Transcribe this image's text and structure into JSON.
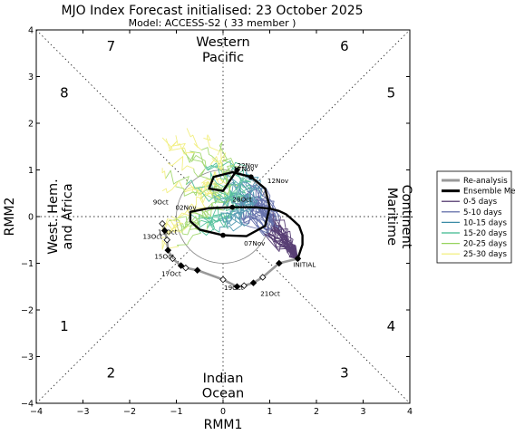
{
  "title": "MJO Index Forecast initialised:  23  October 2025",
  "subtitle": "Model: ACCESS-S2 ( 33 member )",
  "chart_data": {
    "type": "scatter",
    "title": "MJO Index Forecast initialised:  23  October 2025",
    "subtitle": "Model: ACCESS-S2 ( 33 member )",
    "xlabel": "RMM1",
    "ylabel": "RMM2",
    "xlim": [
      -4,
      4
    ],
    "ylim": [
      -4,
      4
    ],
    "xticks": [
      "−4",
      "−3",
      "−2",
      "−1",
      "0",
      "1",
      "2",
      "3",
      "4"
    ],
    "yticks": [
      "−4",
      "−3",
      "−2",
      "−1",
      "0",
      "1",
      "2",
      "3",
      "4"
    ],
    "grid": false,
    "legend_position": "outside-right",
    "phases": [
      {
        "label": "1",
        "x": -3.4,
        "y": -2.45
      },
      {
        "label": "2",
        "x": -2.4,
        "y": -3.45
      },
      {
        "label": "3",
        "x": 2.6,
        "y": -3.45
      },
      {
        "label": "4",
        "x": 3.6,
        "y": -2.45
      },
      {
        "label": "5",
        "x": 3.6,
        "y": 2.55
      },
      {
        "label": "6",
        "x": 2.6,
        "y": 3.55
      },
      {
        "label": "7",
        "x": -2.4,
        "y": 3.55
      },
      {
        "label": "8",
        "x": -3.4,
        "y": 2.55
      }
    ],
    "regions": [
      {
        "name": "western-pacific",
        "lines": [
          "Western",
          "Pacific"
        ]
      },
      {
        "name": "indian-ocean",
        "lines": [
          "Indian",
          "Ocean"
        ]
      },
      {
        "name": "west-hem-africa",
        "lines": [
          "West. Hem.",
          "and Africa"
        ]
      },
      {
        "name": "maritime-continent",
        "lines": [
          "Maritime",
          "Continent"
        ]
      }
    ],
    "series": [
      {
        "name": "Re-analysis",
        "color": "#999999",
        "x": [
          -1.3,
          -1.25,
          -1.2,
          -1.18,
          -1.08,
          -0.9,
          -0.8,
          -0.55,
          0,
          0.3,
          0.45,
          0.65,
          0.85,
          1.2,
          1.6
        ],
        "y": [
          -0.15,
          -0.3,
          -0.5,
          -0.72,
          -0.9,
          -1.05,
          -1.1,
          -1.15,
          -1.35,
          -1.5,
          -1.48,
          -1.42,
          -1.3,
          -1.0,
          -0.9
        ]
      },
      {
        "name": "Ensemble Mean",
        "color": "#000000",
        "x": [
          1.6,
          1.7,
          1.7,
          1.63,
          1.5,
          1.35,
          1.2,
          1.0,
          0.7,
          0.2,
          -0.3,
          -0.7,
          -0.7,
          -0.5,
          0.0,
          0.5,
          0.9,
          1.0,
          0.9,
          0.6,
          0.2,
          -0.2,
          -0.3,
          0.0,
          0.3
        ],
        "y": [
          -0.9,
          -0.6,
          -0.4,
          -0.2,
          -0.08,
          0.05,
          0.12,
          0.17,
          0.2,
          0.2,
          0.18,
          0.1,
          -0.1,
          -0.28,
          -0.4,
          -0.42,
          -0.2,
          0.2,
          0.6,
          0.85,
          0.95,
          0.85,
          0.6,
          0.55,
          1.0
        ]
      }
    ],
    "ensemble_members": 33,
    "forecast_bands": [
      {
        "name": "0-5 days",
        "color": "#3b1e5c"
      },
      {
        "name": "5-10 days",
        "color": "#4c5a9e"
      },
      {
        "name": "10-15 days",
        "color": "#3a8ba6"
      },
      {
        "name": "15-20 days",
        "color": "#3cb98e"
      },
      {
        "name": "20-25 days",
        "color": "#96d35c"
      },
      {
        "name": "25-30 days",
        "color": "#f0ed6e"
      }
    ],
    "date_labels": [
      {
        "text": "9Oct",
        "x": -1.17,
        "y": 0.26,
        "anchor": "end"
      },
      {
        "text": "11Oct",
        "x": -0.98,
        "y": -0.38,
        "anchor": "end"
      },
      {
        "text": "13Oct",
        "x": -1.3,
        "y": -0.48,
        "anchor": "end"
      },
      {
        "text": "15Oct",
        "x": -1.05,
        "y": -0.9,
        "anchor": "end"
      },
      {
        "text": "17Oct",
        "x": -0.9,
        "y": -1.27,
        "anchor": "end"
      },
      {
        "text": "19Oct",
        "x": 0.02,
        "y": -1.57,
        "anchor": "start"
      },
      {
        "text": "21Oct",
        "x": 0.8,
        "y": -1.7,
        "anchor": "start"
      },
      {
        "text": "INITIAL",
        "x": 1.5,
        "y": -1.08,
        "anchor": "start"
      },
      {
        "text": "28Oct",
        "x": 0.2,
        "y": 0.32,
        "anchor": "start"
      },
      {
        "text": "02Nov",
        "x": -1.02,
        "y": 0.15,
        "anchor": "start"
      },
      {
        "text": "07Nov",
        "x": 0.45,
        "y": -0.62,
        "anchor": "start"
      },
      {
        "text": "12Nov",
        "x": 0.95,
        "y": 0.72,
        "anchor": "start"
      },
      {
        "text": "17Nov",
        "x": 0.22,
        "y": 0.97,
        "anchor": "start"
      },
      {
        "text": "22Nov",
        "x": 0.3,
        "y": 1.05,
        "anchor": "start"
      }
    ]
  },
  "legend": {
    "items": [
      {
        "label": "Re-analysis",
        "color": "#999999",
        "kind": "thick"
      },
      {
        "label": "Ensemble Mean",
        "color": "#000000",
        "kind": "thick"
      },
      {
        "label": "0-5 days",
        "color": "#3b1e5c",
        "kind": "thin"
      },
      {
        "label": "5-10 days",
        "color": "#4c5a9e",
        "kind": "thin"
      },
      {
        "label": "10-15 days",
        "color": "#3a8ba6",
        "kind": "thin"
      },
      {
        "label": "15-20 days",
        "color": "#3cb98e",
        "kind": "thin"
      },
      {
        "label": "20-25 days",
        "color": "#96d35c",
        "kind": "thin"
      },
      {
        "label": "25-30 days",
        "color": "#f0ed6e",
        "kind": "thin"
      }
    ]
  }
}
